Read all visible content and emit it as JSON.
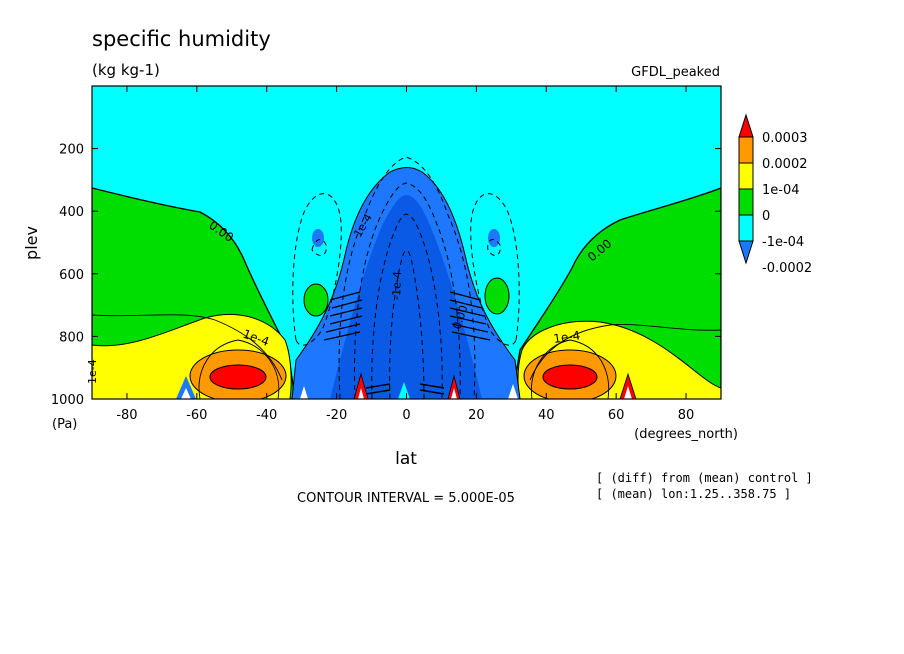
{
  "title": "specific humidity",
  "units": "(kg kg-1)",
  "model": "GFDL_peaked",
  "chart_data": {
    "type": "contour",
    "title": "specific humidity",
    "units": "(kg kg-1)",
    "xlabel": "lat",
    "xunits": "(degrees_north)",
    "ylabel": "plev",
    "yunits": "(Pa)",
    "xlim": [
      -90,
      90
    ],
    "ylim": [
      1000,
      0
    ],
    "xticks": [
      -80,
      -60,
      -40,
      -20,
      0,
      20,
      40,
      60,
      80
    ],
    "yticks": [
      200,
      400,
      600,
      800,
      1000
    ],
    "contour_interval": "CONTOUR INTERVAL = 5.000E-05",
    "contour_labels": [
      "0.00",
      "1e-4",
      "0.00",
      "1e-4",
      "1e-4",
      "-1e-4",
      "0.00",
      "1e-4"
    ],
    "legend": {
      "placement": "right",
      "levels": [
        "0.0003",
        "0.0002",
        "1e-04",
        "0",
        "-1e-04",
        "-0.0002"
      ],
      "colors": [
        "#ff0000",
        "#ff9900",
        "#ffff00",
        "#00dd00",
        "#00ffff",
        "#1e78ff"
      ]
    },
    "notes": [
      "[ (diff) from (mean) control ]",
      "[ (mean) lon:1.25..358.75 ]"
    ]
  },
  "colors": {
    "cyan": "#00ffff",
    "blue": "#1e78ff",
    "green": "#00dd00",
    "yellow": "#ffff00",
    "orange": "#ff9900",
    "red": "#ff0000"
  }
}
